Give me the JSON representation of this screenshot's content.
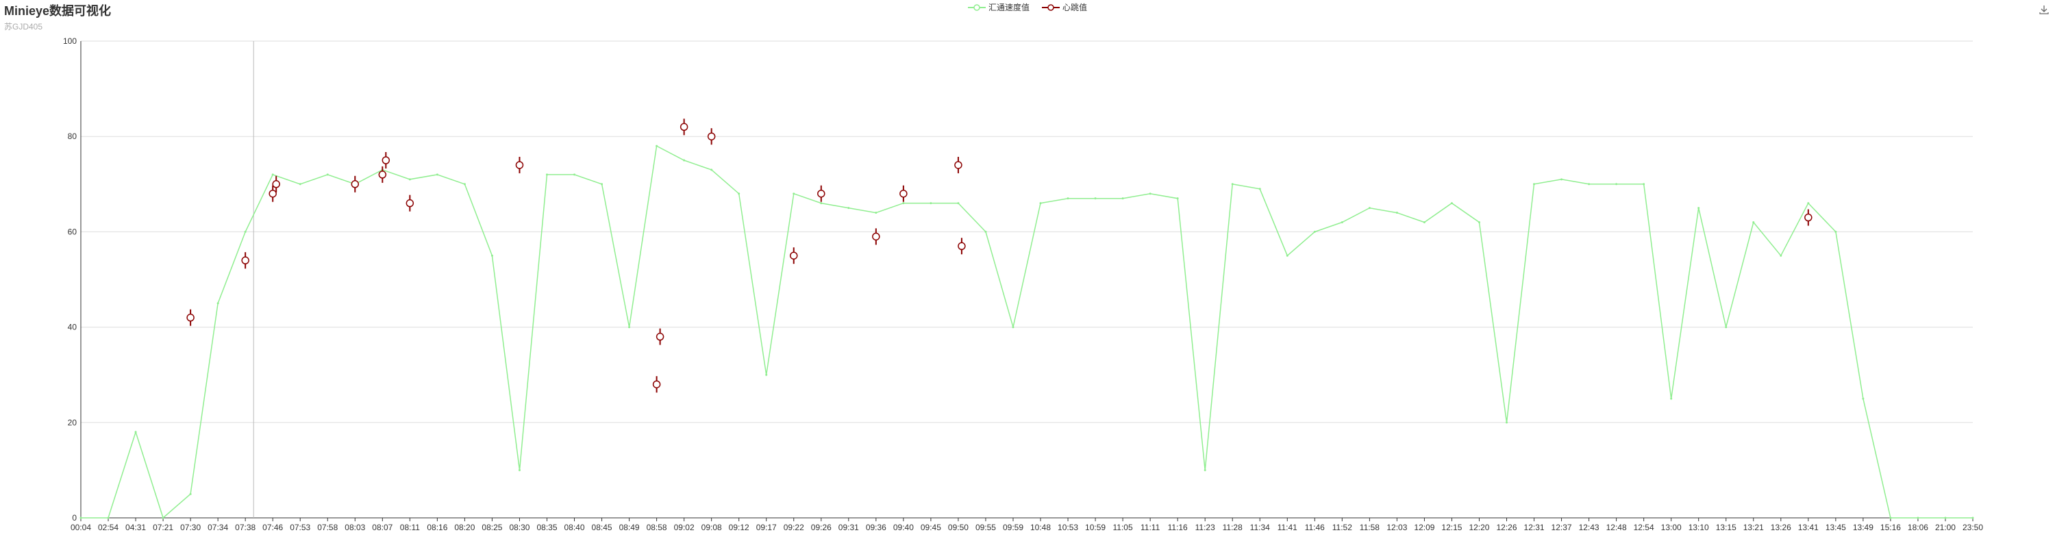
{
  "title": "Minieye数据可视化",
  "subtitle": "苏GJD405",
  "legend": [
    {
      "name": "汇通速度值",
      "color": "#90EE90"
    },
    {
      "name": "心跳值",
      "color": "#8B0000"
    }
  ],
  "toolbox": {
    "icon": "download-icon"
  },
  "chart_data": {
    "type": "line",
    "ylim": [
      0,
      100
    ],
    "yticks": [
      0,
      20,
      40,
      60,
      80,
      100
    ],
    "grid": true,
    "legend_position": "top-center",
    "categories": [
      "00:04",
      "02:54",
      "04:31",
      "07:21",
      "07:30",
      "07:34",
      "07:38",
      "07:46",
      "07:53",
      "07:58",
      "08:03",
      "08:07",
      "08:11",
      "08:16",
      "08:20",
      "08:25",
      "08:30",
      "08:35",
      "08:40",
      "08:45",
      "08:49",
      "08:58",
      "09:02",
      "09:08",
      "09:12",
      "09:17",
      "09:22",
      "09:26",
      "09:31",
      "09:36",
      "09:40",
      "09:45",
      "09:50",
      "09:55",
      "09:59",
      "10:48",
      "10:53",
      "10:59",
      "11:05",
      "11:11",
      "11:16",
      "11:23",
      "11:28",
      "11:34",
      "11:41",
      "11:46",
      "11:52",
      "11:58",
      "12:03",
      "12:09",
      "12:15",
      "12:20",
      "12:26",
      "12:31",
      "12:37",
      "12:43",
      "12:48",
      "12:54",
      "13:00",
      "13:10",
      "13:15",
      "13:21",
      "13:26",
      "13:41",
      "13:45",
      "13:49",
      "15:16",
      "18:06",
      "21:00",
      "23:50"
    ],
    "series": [
      {
        "name": "汇通速度值",
        "color": "#90EE90",
        "values": [
          0,
          0,
          18,
          0,
          5,
          45,
          60,
          72,
          70,
          72,
          70,
          73,
          71,
          72,
          70,
          55,
          10,
          72,
          72,
          70,
          40,
          78,
          75,
          73,
          68,
          30,
          68,
          66,
          65,
          64,
          66,
          66,
          66,
          60,
          40,
          66,
          67,
          67,
          67,
          68,
          67,
          10,
          70,
          69,
          55,
          60,
          62,
          65,
          64,
          62,
          66,
          62,
          20,
          70,
          71,
          70,
          70,
          70,
          25,
          65,
          40,
          62,
          55,
          66,
          60,
          25,
          0,
          0,
          0,
          0
        ]
      },
      {
        "name": "心跳值",
        "color": "#8B0000",
        "points": [
          {
            "x": "07:30",
            "y": 42
          },
          {
            "x": "07:38",
            "y": 54
          },
          {
            "x": "07:46",
            "y": 68
          },
          {
            "x": "07:46",
            "y": 70
          },
          {
            "x": "08:03",
            "y": 70
          },
          {
            "x": "08:07",
            "y": 72
          },
          {
            "x": "08:07",
            "y": 75
          },
          {
            "x": "08:11",
            "y": 66
          },
          {
            "x": "08:30",
            "y": 74
          },
          {
            "x": "08:58",
            "y": 28
          },
          {
            "x": "08:58",
            "y": 38
          },
          {
            "x": "09:02",
            "y": 82
          },
          {
            "x": "09:08",
            "y": 80
          },
          {
            "x": "09:22",
            "y": 55
          },
          {
            "x": "09:26",
            "y": 68
          },
          {
            "x": "09:36",
            "y": 59
          },
          {
            "x": "09:40",
            "y": 68
          },
          {
            "x": "09:50",
            "y": 74
          },
          {
            "x": "09:50",
            "y": 57
          },
          {
            "x": "13:41",
            "y": 63
          }
        ]
      }
    ]
  }
}
